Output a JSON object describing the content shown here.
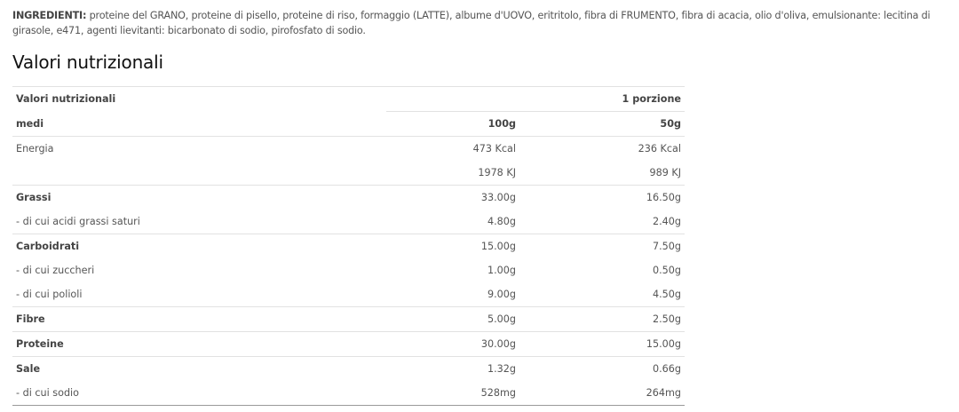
{
  "ingredients": {
    "label": "INGREDIENTI:",
    "text": " proteine del GRANO, proteine di pisello, proteine di riso, formaggio (LATTE), albume d'UOVO, eritritolo, fibra di FRUMENTO, fibra di acacia, olio d'oliva, emulsionante: lecitina di girasole, e471, agenti lievitanti: bicarbonato di sodio, pirofosfato di sodio."
  },
  "title": "Valori nutrizionali",
  "table": {
    "header1": [
      "Valori nutrizionali",
      "",
      "1 porzione"
    ],
    "header2": [
      "medi",
      "100g",
      "50g"
    ],
    "rows": [
      {
        "label": "Energia",
        "v100": "473 Kcal",
        "vp": "236 Kcal",
        "bold": false,
        "sep": true
      },
      {
        "label": "",
        "v100": "1978 KJ",
        "vp": "989 KJ",
        "bold": false,
        "sep": false
      },
      {
        "label": "Grassi",
        "v100": "33.00g",
        "vp": "16.50g",
        "bold": true,
        "sep": true
      },
      {
        "label": "- di cui acidi grassi saturi",
        "v100": "4.80g",
        "vp": "2.40g",
        "bold": false,
        "sep": false
      },
      {
        "label": "Carboidrati",
        "v100": "15.00g",
        "vp": "7.50g",
        "bold": true,
        "sep": true
      },
      {
        "label": "- di cui zuccheri",
        "v100": "1.00g",
        "vp": "0.50g",
        "bold": false,
        "sep": false
      },
      {
        "label": "- di cui polioli",
        "v100": "9.00g",
        "vp": "4.50g",
        "bold": false,
        "sep": false
      },
      {
        "label": "Fibre",
        "v100": "5.00g",
        "vp": "2.50g",
        "bold": true,
        "sep": true
      },
      {
        "label": "Proteine",
        "v100": "30.00g",
        "vp": "15.00g",
        "bold": true,
        "sep": true
      },
      {
        "label": "Sale",
        "v100": "1.32g",
        "vp": "0.66g",
        "bold": true,
        "sep": true
      },
      {
        "label": "- di cui sodio",
        "v100": "528mg",
        "vp": "264mg",
        "bold": false,
        "sep": false
      }
    ]
  }
}
